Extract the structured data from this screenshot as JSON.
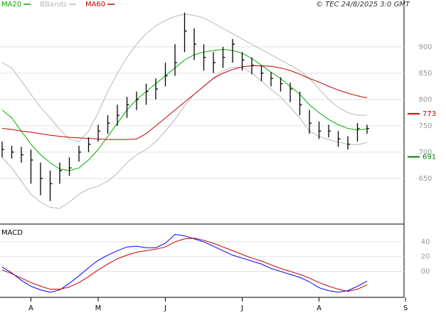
{
  "chart_data": [
    {
      "type": "hlc",
      "copyright": "© TEC 24/8/2025 3:0 GMT",
      "ylim": [
        566,
        989
      ],
      "yticks": [
        650,
        700,
        750,
        800,
        850,
        900
      ],
      "grid": true,
      "bars": {
        "color": "#000000",
        "high": [
          720,
          712,
          710,
          705,
          680,
          665,
          680,
          690,
          712,
          728,
          752,
          770,
          790,
          805,
          815,
          830,
          840,
          870,
          905,
          965,
          935,
          905,
          890,
          900,
          915,
          890,
          880,
          865,
          852,
          842,
          832,
          815,
          780,
          758,
          752,
          740,
          730,
          755,
          752,
          null,
          null,
          null,
          null
        ],
        "low": [
          690,
          688,
          680,
          640,
          618,
          607,
          640,
          655,
          682,
          700,
          720,
          735,
          750,
          765,
          780,
          790,
          800,
          825,
          845,
          890,
          875,
          855,
          850,
          860,
          870,
          855,
          848,
          835,
          825,
          815,
          795,
          770,
          735,
          725,
          728,
          710,
          705,
          720,
          735,
          null,
          null,
          null,
          null
        ],
        "close": [
          705,
          700,
          695,
          685,
          650,
          640,
          665,
          670,
          700,
          715,
          740,
          755,
          770,
          790,
          800,
          815,
          820,
          845,
          870,
          930,
          905,
          880,
          870,
          880,
          905,
          875,
          865,
          850,
          840,
          830,
          820,
          790,
          755,
          740,
          740,
          725,
          715,
          745,
          745,
          null,
          null,
          null,
          null
        ]
      },
      "series": [
        {
          "name": "MA20",
          "color": "#00b000",
          "values": [
            780,
            765,
            740,
            715,
            695,
            680,
            668,
            665,
            670,
            685,
            705,
            730,
            755,
            780,
            800,
            815,
            830,
            845,
            860,
            875,
            885,
            890,
            893,
            895,
            893,
            888,
            878,
            865,
            852,
            840,
            825,
            810,
            790,
            775,
            762,
            752,
            745,
            742,
            744,
            null,
            null,
            null,
            null
          ]
        },
        {
          "name": "BBands",
          "color": "#b8b8b8",
          "upper": [
            870,
            860,
            835,
            810,
            785,
            765,
            743,
            725,
            720,
            740,
            775,
            815,
            850,
            880,
            905,
            925,
            940,
            950,
            958,
            962,
            960,
            955,
            945,
            935,
            925,
            915,
            905,
            895,
            885,
            875,
            865,
            855,
            840,
            820,
            800,
            785,
            775,
            770,
            770,
            null,
            null,
            null,
            null
          ],
          "lower": [
            690,
            670,
            645,
            620,
            605,
            595,
            593,
            605,
            620,
            630,
            635,
            645,
            660,
            680,
            695,
            705,
            720,
            740,
            762,
            788,
            810,
            825,
            841,
            855,
            861,
            861,
            851,
            835,
            819,
            805,
            785,
            765,
            740,
            730,
            724,
            719,
            715,
            714,
            718,
            null,
            null,
            null,
            null
          ]
        },
        {
          "name": "MA60",
          "color": "#c00000",
          "values": [
            745,
            743,
            740,
            738,
            735,
            732,
            730,
            728,
            727,
            726,
            725,
            724,
            724,
            724,
            725,
            735,
            750,
            765,
            780,
            795,
            810,
            825,
            840,
            850,
            857,
            862,
            864,
            864,
            863,
            860,
            855,
            848,
            840,
            833,
            825,
            818,
            812,
            807,
            803,
            null,
            null,
            null,
            null
          ]
        }
      ],
      "levels": [
        {
          "value": 773,
          "color": "#d00000"
        },
        {
          "value": 691,
          "color": "#008000"
        }
      ]
    },
    {
      "type": "line",
      "ylim": [
        -35,
        62
      ],
      "yticks": [
        40,
        20,
        {
          "value": 0,
          "label": "00"
        }
      ],
      "grid": true,
      "categories": [
        null,
        null,
        null,
        "A",
        null,
        null,
        null,
        null,
        null,
        null,
        "M",
        null,
        null,
        null,
        null,
        null,
        null,
        "J",
        null,
        null,
        null,
        null,
        null,
        null,
        null,
        "J",
        null,
        null,
        null,
        null,
        null,
        null,
        null,
        "A",
        null,
        null,
        null,
        null,
        null,
        null,
        null,
        null,
        "S"
      ],
      "series": [
        {
          "name": "MACD",
          "color": "#0000ff",
          "values": [
            6,
            -2,
            -12,
            -20,
            -25,
            -28,
            -25,
            -16,
            -6,
            5,
            15,
            22,
            28,
            33,
            34,
            32,
            32,
            38,
            50,
            48,
            44,
            40,
            34,
            28,
            22,
            18,
            14,
            10,
            4,
            0,
            -4,
            -8,
            -14,
            -22,
            -26,
            -28,
            -26,
            -20,
            -13,
            null,
            null,
            null,
            null
          ]
        },
        {
          "color": "#c00000",
          "values": [
            2,
            -3,
            -9,
            -15,
            -20,
            -24,
            -24,
            -21,
            -15,
            -7,
            2,
            10,
            17,
            22,
            26,
            28,
            30,
            33,
            40,
            44,
            45,
            42,
            38,
            33,
            28,
            23,
            18,
            14,
            9,
            4,
            0,
            -4,
            -9,
            -15,
            -20,
            -24,
            -27,
            -24,
            -18,
            null,
            null,
            null,
            null
          ]
        }
      ]
    }
  ]
}
